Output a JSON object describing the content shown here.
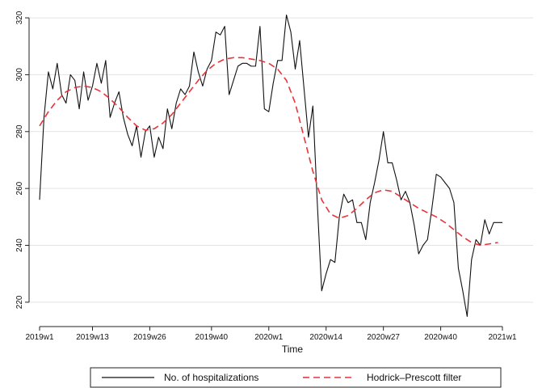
{
  "chart_data": {
    "type": "line",
    "title": "",
    "xlabel": "Time",
    "ylabel": "",
    "ylim": [
      212,
      324
    ],
    "xlim": [
      0,
      110
    ],
    "grid": true,
    "legend_position": "bottom",
    "yticks": [
      220,
      240,
      260,
      280,
      300,
      320
    ],
    "xticks": [
      {
        "pos": 0,
        "label": "2019w1"
      },
      {
        "pos": 12,
        "label": "2019w13"
      },
      {
        "pos": 25,
        "label": "2019w26"
      },
      {
        "pos": 39,
        "label": "2019w40"
      },
      {
        "pos": 52,
        "label": "2020w1"
      },
      {
        "pos": 65,
        "label": "2020w14"
      },
      {
        "pos": 78,
        "label": "2020w27"
      },
      {
        "pos": 91,
        "label": "2020w40"
      },
      {
        "pos": 105,
        "label": "2021w1"
      }
    ],
    "series": [
      {
        "name": "No. of hospitalizations",
        "color": "#111111",
        "style": "solid",
        "x": [
          0,
          1,
          2,
          3,
          4,
          5,
          6,
          7,
          8,
          9,
          10,
          11,
          12,
          13,
          14,
          15,
          16,
          17,
          18,
          19,
          20,
          21,
          22,
          23,
          24,
          25,
          26,
          27,
          28,
          29,
          30,
          31,
          32,
          33,
          34,
          35,
          36,
          37,
          38,
          39,
          40,
          41,
          42,
          43,
          44,
          45,
          46,
          47,
          48,
          49,
          50,
          51,
          52,
          53,
          54,
          55,
          56,
          57,
          58,
          59,
          60,
          61,
          62,
          63,
          64,
          65,
          66,
          67,
          68,
          69,
          70,
          71,
          72,
          73,
          74,
          75,
          76,
          77,
          78,
          79,
          80,
          81,
          82,
          83,
          84,
          85,
          86,
          87,
          88,
          89,
          90,
          91,
          92,
          93,
          94,
          95,
          96,
          97,
          98,
          99,
          100,
          101,
          102,
          103,
          104,
          105
        ],
        "values": [
          256,
          285,
          301,
          295,
          304,
          293,
          290,
          300,
          298,
          288,
          301,
          291,
          296,
          304,
          297,
          305,
          285,
          290,
          294,
          285,
          279,
          275,
          282,
          271,
          280,
          282,
          271,
          278,
          274,
          288,
          281,
          290,
          295,
          293,
          296,
          308,
          301,
          296,
          302,
          305,
          315,
          314,
          317,
          293,
          298,
          303,
          304,
          304,
          303,
          303,
          317,
          288,
          287,
          297,
          305,
          305,
          321,
          315,
          302,
          312,
          295,
          278,
          289,
          255,
          224,
          230,
          235,
          234,
          250,
          258,
          255,
          256,
          248,
          248,
          242,
          255,
          262,
          270,
          280,
          269,
          269,
          263,
          256,
          259,
          255,
          247,
          237,
          240,
          242,
          253,
          265,
          264,
          262,
          260,
          255,
          232,
          224,
          215,
          235,
          242,
          240,
          249,
          244,
          248,
          248,
          248
        ]
      },
      {
        "name": "Hodrick–Prescott filter",
        "color": "#e8343a",
        "style": "dashed",
        "x": [
          0,
          2,
          4,
          6,
          8,
          10,
          12,
          14,
          16,
          18,
          20,
          22,
          24,
          26,
          28,
          30,
          32,
          34,
          36,
          38,
          40,
          42,
          44,
          46,
          48,
          50,
          52,
          54,
          56,
          58,
          60,
          62,
          64,
          66,
          68,
          70,
          72,
          74,
          76,
          78,
          80,
          82,
          84,
          86,
          88,
          90,
          92,
          94,
          96,
          98,
          100,
          102,
          104
        ],
        "values": [
          282,
          287,
          291,
          294,
          295.5,
          296,
          295.5,
          294,
          291.5,
          288.5,
          285,
          282,
          280.5,
          281,
          283,
          286,
          290,
          294,
          298,
          301.5,
          304,
          305.5,
          306,
          306,
          305.5,
          305,
          304,
          302,
          298,
          290,
          278,
          266,
          256,
          251,
          249.5,
          250.5,
          253,
          256,
          258.5,
          259.5,
          259,
          257,
          255,
          253,
          251.5,
          250,
          248,
          245.5,
          243,
          241,
          240,
          240.5,
          241
        ]
      }
    ]
  }
}
